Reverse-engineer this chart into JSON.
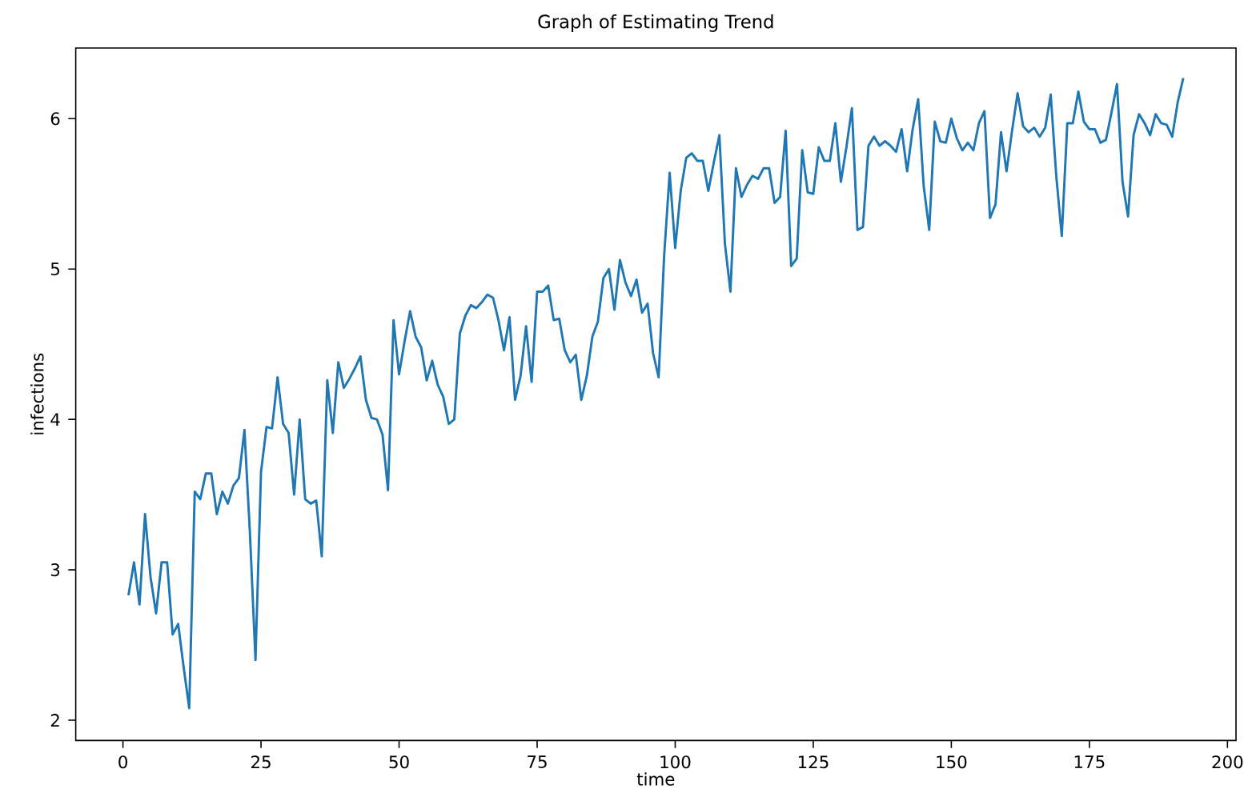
{
  "chart_data": {
    "type": "line",
    "title": "Graph of Estimating Trend",
    "xlabel": "time",
    "ylabel": "infections",
    "color": "#1f77b4",
    "xlim": [
      -8.55,
      201.55
    ],
    "ylim": [
      1.865,
      6.47
    ],
    "xticks": [
      0,
      25,
      50,
      75,
      100,
      125,
      150,
      175,
      200
    ],
    "yticks": [
      2,
      3,
      4,
      5,
      6
    ],
    "x": [
      1,
      2,
      3,
      4,
      5,
      6,
      7,
      8,
      9,
      10,
      11,
      12,
      13,
      14,
      15,
      16,
      17,
      18,
      19,
      20,
      21,
      22,
      23,
      24,
      25,
      26,
      27,
      28,
      29,
      30,
      31,
      32,
      33,
      34,
      35,
      36,
      37,
      38,
      39,
      40,
      41,
      42,
      43,
      44,
      45,
      46,
      47,
      48,
      49,
      50,
      51,
      52,
      53,
      54,
      55,
      56,
      57,
      58,
      59,
      60,
      61,
      62,
      63,
      64,
      65,
      66,
      67,
      68,
      69,
      70,
      71,
      72,
      73,
      74,
      75,
      76,
      77,
      78,
      79,
      80,
      81,
      82,
      83,
      84,
      85,
      86,
      87,
      88,
      89,
      90,
      91,
      92,
      93,
      94,
      95,
      96,
      97,
      98,
      99,
      100,
      101,
      102,
      103,
      104,
      105,
      106,
      107,
      108,
      109,
      110,
      111,
      112,
      113,
      114,
      115,
      116,
      117,
      118,
      119,
      120,
      121,
      122,
      123,
      124,
      125,
      126,
      127,
      128,
      129,
      130,
      131,
      132,
      133,
      134,
      135,
      136,
      137,
      138,
      139,
      140,
      141,
      142,
      143,
      144,
      145,
      146,
      147,
      148,
      149,
      150,
      151,
      152,
      153,
      154,
      155,
      156,
      157,
      158,
      159,
      160,
      161,
      162,
      163,
      164,
      165,
      166,
      167,
      168,
      169,
      170,
      171,
      172,
      173,
      174,
      175,
      176,
      177,
      178,
      179,
      180,
      181,
      182,
      183,
      184,
      185,
      186,
      187,
      188,
      189,
      190,
      191,
      192
    ],
    "values": [
      2.83,
      3.05,
      2.77,
      3.37,
      2.95,
      2.71,
      3.05,
      3.05,
      2.57,
      2.64,
      2.35,
      2.08,
      3.52,
      3.47,
      3.64,
      3.64,
      3.37,
      3.52,
      3.44,
      3.56,
      3.61,
      3.93,
      3.24,
      2.4,
      3.65,
      3.95,
      3.94,
      4.28,
      3.97,
      3.91,
      3.5,
      4.0,
      3.47,
      3.44,
      3.46,
      3.09,
      4.26,
      3.91,
      4.38,
      4.21,
      4.27,
      4.34,
      4.42,
      4.13,
      4.01,
      4.0,
      3.9,
      3.53,
      4.66,
      4.3,
      4.52,
      4.72,
      4.55,
      4.48,
      4.26,
      4.39,
      4.23,
      4.15,
      3.97,
      4.0,
      4.57,
      4.69,
      4.76,
      4.74,
      4.78,
      4.83,
      4.81,
      4.66,
      4.46,
      4.68,
      4.13,
      4.29,
      4.62,
      4.25,
      4.85,
      4.85,
      4.89,
      4.66,
      4.67,
      4.46,
      4.38,
      4.43,
      4.13,
      4.29,
      4.55,
      4.65,
      4.94,
      5.0,
      4.73,
      5.06,
      4.91,
      4.82,
      4.93,
      4.71,
      4.77,
      4.44,
      4.28,
      5.09,
      5.64,
      5.14,
      5.52,
      5.74,
      5.77,
      5.72,
      5.72,
      5.52,
      5.71,
      5.89,
      5.17,
      4.85,
      5.67,
      5.48,
      5.56,
      5.62,
      5.6,
      5.67,
      5.67,
      5.44,
      5.48,
      5.92,
      5.02,
      5.07,
      5.79,
      5.51,
      5.5,
      5.81,
      5.72,
      5.72,
      5.97,
      5.58,
      5.81,
      6.07,
      5.26,
      5.28,
      5.82,
      5.88,
      5.82,
      5.85,
      5.82,
      5.78,
      5.93,
      5.65,
      5.93,
      6.13,
      5.55,
      5.26,
      5.98,
      5.85,
      5.84,
      6.0,
      5.87,
      5.79,
      5.84,
      5.79,
      5.97,
      6.05,
      5.34,
      5.43,
      5.91,
      5.65,
      5.92,
      6.17,
      5.95,
      5.91,
      5.94,
      5.88,
      5.94,
      6.16,
      5.62,
      5.22,
      5.97,
      5.97,
      6.18,
      5.98,
      5.93,
      5.93,
      5.84,
      5.86,
      6.04,
      6.23,
      5.58,
      5.35,
      5.89,
      6.03,
      5.97,
      5.89,
      6.03,
      5.97,
      5.96,
      5.88,
      6.11,
      6.27
    ]
  }
}
